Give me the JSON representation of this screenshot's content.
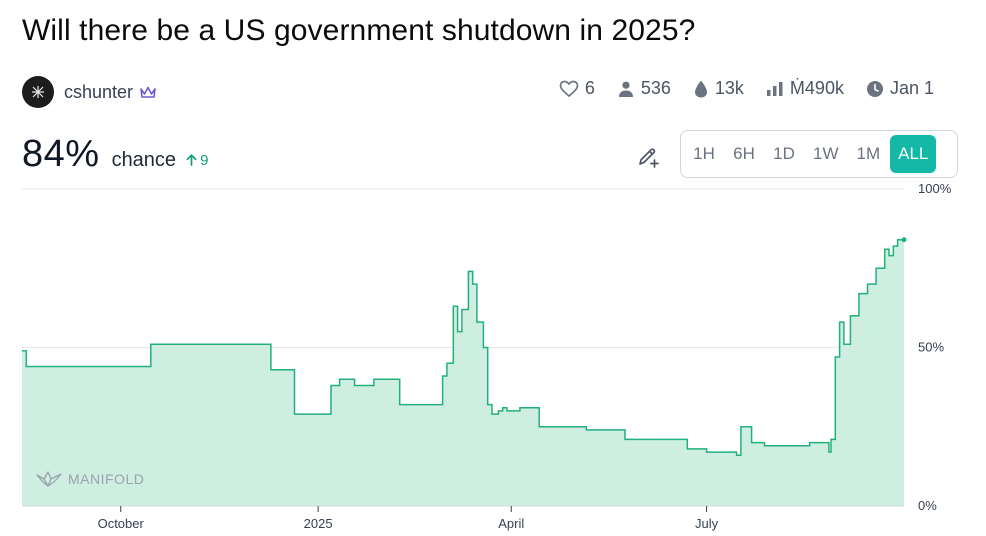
{
  "market": {
    "title": "Will there be a US government shutdown in 2025?"
  },
  "creator": {
    "name": "cshunter",
    "badge_icon": "crown-icon"
  },
  "stats": [
    {
      "icon": "heart-icon",
      "value": "6"
    },
    {
      "icon": "user-icon",
      "value": "536"
    },
    {
      "icon": "droplet-icon",
      "value": "13k"
    },
    {
      "icon": "bar-chart-icon",
      "value": "Ṁ490k"
    },
    {
      "icon": "clock-icon",
      "value": "Jan 1"
    }
  ],
  "probability": {
    "value": "84%",
    "label": "chance",
    "change": "9"
  },
  "time_ranges": [
    {
      "label": "1H",
      "active": false
    },
    {
      "label": "6H",
      "active": false
    },
    {
      "label": "1D",
      "active": false
    },
    {
      "label": "1W",
      "active": false
    },
    {
      "label": "1M",
      "active": false
    },
    {
      "label": "ALL",
      "active": true
    }
  ],
  "watermark": "MANIFOLD",
  "colors": {
    "accent": "#14b8a6",
    "line": "#22b07d",
    "fill": "#cdeee0",
    "up": "#0f9b7f"
  },
  "chart_data": {
    "type": "area",
    "y_tick_labels": [
      "100%",
      "50%",
      "0%"
    ],
    "x_tick_labels": [
      "October",
      "2025",
      "April",
      "July"
    ],
    "ylim": [
      0,
      100
    ],
    "xlim": [
      "2024-08-16",
      "2025-10-01"
    ],
    "reference_line": 50,
    "x_ticks": [
      "2024-10-01",
      "2025-01-01",
      "2025-04-01",
      "2025-07-01"
    ],
    "series": [
      {
        "x": [
          "2024-08-16",
          "2024-08-18",
          "2024-10-13",
          "2024-10-15",
          "2024-11-29",
          "2024-12-10",
          "2024-12-21",
          "2024-12-24",
          "2025-01-07",
          "2025-01-11",
          "2025-01-18",
          "2025-01-27",
          "2025-02-08",
          "2025-02-23",
          "2025-02-28",
          "2025-03-02",
          "2025-03-05",
          "2025-03-07",
          "2025-03-09",
          "2025-03-12",
          "2025-03-14",
          "2025-03-16",
          "2025-03-19",
          "2025-03-21",
          "2025-03-23",
          "2025-03-26",
          "2025-03-28",
          "2025-03-30",
          "2025-04-02",
          "2025-04-05",
          "2025-04-14",
          "2025-05-01",
          "2025-05-06",
          "2025-05-24",
          "2025-06-06",
          "2025-06-22",
          "2025-07-01",
          "2025-07-15",
          "2025-07-17",
          "2025-07-22",
          "2025-07-28",
          "2025-08-02",
          "2025-08-14",
          "2025-08-18",
          "2025-08-27",
          "2025-08-28",
          "2025-08-30",
          "2025-09-01",
          "2025-09-03",
          "2025-09-06",
          "2025-09-10",
          "2025-09-14",
          "2025-09-18",
          "2025-09-22",
          "2025-09-24",
          "2025-09-26",
          "2025-09-28",
          "2025-10-01"
        ],
        "y": [
          49,
          44,
          44,
          51,
          51,
          43,
          29,
          29,
          38,
          40,
          38,
          40,
          32,
          32,
          41,
          45,
          63,
          55,
          62,
          74,
          70,
          58,
          50,
          32,
          29,
          30,
          31,
          30,
          30,
          31,
          25,
          25,
          24,
          21,
          21,
          18,
          17,
          16,
          25,
          20,
          19,
          19,
          19,
          20,
          17,
          21,
          47,
          58,
          51,
          60,
          67,
          70,
          75,
          81,
          79,
          82,
          84,
          84
        ]
      }
    ]
  }
}
